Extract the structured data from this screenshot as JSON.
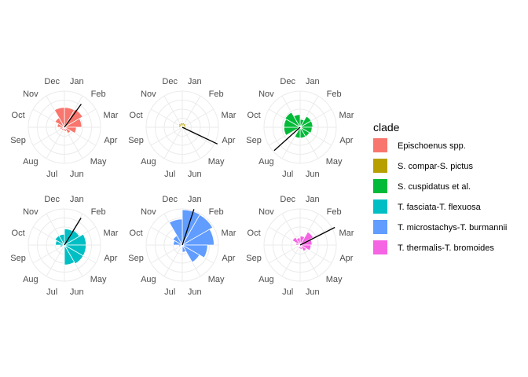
{
  "legend": {
    "title": "clade",
    "items": [
      {
        "label": "Epischoenus spp.",
        "color": "#F8766D"
      },
      {
        "label": "S. compar-S. pictus",
        "color": "#B79F00"
      },
      {
        "label": "S. cuspidatus et al.",
        "color": "#00BA38"
      },
      {
        "label": "T. fasciata-T. flexuosa",
        "color": "#00BFC4"
      },
      {
        "label": "T. microstachys-T. burmannii",
        "color": "#619CFF"
      },
      {
        "label": "T. thermalis-T. bromoides",
        "color": "#F564E3"
      }
    ]
  },
  "chart_data": {
    "type": "polar-bar",
    "months": [
      "Jan",
      "Feb",
      "Mar",
      "Apr",
      "May",
      "Jun",
      "Jul",
      "Aug",
      "Sep",
      "Oct",
      "Nov",
      "Dec"
    ],
    "rlim": [
      0,
      1
    ],
    "grid": true,
    "legend_position": "right",
    "panels": [
      {
        "clade": "Epischoenus spp.",
        "color": "#F8766D",
        "values": [
          0.55,
          0.58,
          0.48,
          0.33,
          0.2,
          0.12,
          0.1,
          0.1,
          0.12,
          0.2,
          0.3,
          0.55
        ],
        "mean_direction_month": 1.2,
        "mean_length": 0.72
      },
      {
        "clade": "S. compar-S. pictus",
        "color": "#B79F00",
        "values": [
          0.12,
          0.12,
          0.1,
          0.1,
          0.02,
          0.02,
          0.02,
          0.02,
          0.02,
          0.1,
          0.12,
          0.12
        ],
        "mean_direction_month": 3.85,
        "mean_length": 0.98
      },
      {
        "clade": "S. cuspidatus et al.",
        "color": "#00BA38",
        "values": [
          0.22,
          0.35,
          0.35,
          0.33,
          0.3,
          0.3,
          0.3,
          0.12,
          0.45,
          0.45,
          0.48,
          0.35
        ],
        "mean_direction_month": 7.6,
        "mean_length": 0.88
      },
      {
        "clade": "T. fasciata-T. flexuosa",
        "color": "#00BFC4",
        "values": [
          0.45,
          0.48,
          0.6,
          0.6,
          0.6,
          0.55,
          0.05,
          0.05,
          0.12,
          0.25,
          0.3,
          0.3
        ],
        "mean_direction_month": 1.05,
        "mean_length": 0.8
      },
      {
        "clade": "T. microstachys-T. burmannii",
        "color": "#619CFF",
        "values": [
          0.98,
          0.97,
          0.88,
          0.7,
          0.55,
          0.2,
          0.05,
          0.05,
          0.1,
          0.25,
          0.3,
          0.72
        ],
        "mean_direction_month": 0.6,
        "mean_length": 0.95
      },
      {
        "clade": "T. thermalis-T. bromoides",
        "color": "#F564E3",
        "values": [
          0.25,
          0.42,
          0.33,
          0.3,
          0.2,
          0.12,
          0.1,
          0.05,
          0.05,
          0.12,
          0.25,
          0.2
        ],
        "mean_direction_month": 2.1,
        "mean_length": 0.98
      }
    ]
  }
}
